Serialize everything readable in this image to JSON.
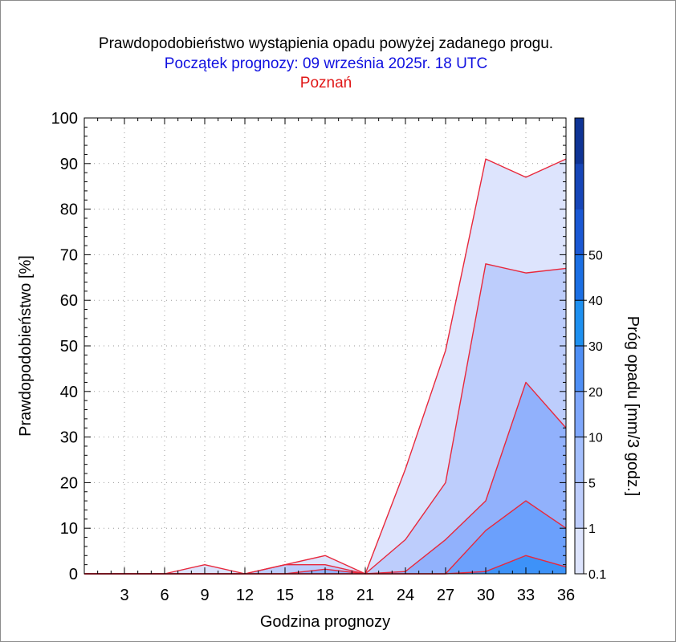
{
  "title": "Prawdopodobieństwo wystąpienia opadu powyżej zadanego progu.",
  "subtitle": "Początek prognozy: 09 września 2025r. 18 UTC",
  "location": "Poznań",
  "colors": {
    "title": "#000000",
    "subtitle": "#1010e0",
    "location": "#e01818",
    "line": "#e8283c",
    "fills": [
      "#dde4fd",
      "#bdcdfc",
      "#91b1fc",
      "#6ba0fc",
      "#3d92f8",
      "#1782f0"
    ],
    "colorbar": [
      "#dde4fd",
      "#bdcdfc",
      "#a4bffd",
      "#7fa7fb",
      "#4f8ff5",
      "#1e90f0",
      "#1b6fe4",
      "#1a58d4",
      "#1646b8",
      "#0f3495"
    ]
  },
  "chart_data": {
    "type": "area",
    "title": "Prawdopodobieństwo wystąpienia opadu powyżej zadanego progu.",
    "subtitle": "Początek prognozy: 09 września 2025r. 18 UTC",
    "xlabel": "Godzina prognozy",
    "ylabel": "Prawdopodobieństwo [%]",
    "xlim": [
      0,
      36
    ],
    "ylim": [
      0,
      100
    ],
    "x_ticks": [
      3,
      6,
      9,
      12,
      15,
      18,
      21,
      24,
      27,
      30,
      33,
      36
    ],
    "y_ticks": [
      0,
      10,
      20,
      30,
      40,
      50,
      60,
      70,
      80,
      90,
      100
    ],
    "grid": true,
    "x": [
      0,
      3,
      6,
      9,
      12,
      15,
      18,
      21,
      24,
      27,
      30,
      33,
      36
    ],
    "series": [
      {
        "threshold": 0.1,
        "values": [
          0,
          0,
          0,
          2,
          0,
          2,
          4,
          0,
          23,
          49,
          91,
          87,
          91
        ]
      },
      {
        "threshold": 1,
        "values": [
          0,
          0,
          0,
          0,
          0,
          2,
          2,
          0,
          7.5,
          20,
          68,
          66,
          67
        ]
      },
      {
        "threshold": 5,
        "values": [
          0,
          0,
          0,
          0,
          0,
          0,
          1,
          0,
          0.5,
          7.5,
          16,
          42,
          32
        ]
      },
      {
        "threshold": 10,
        "values": [
          0,
          0,
          0,
          0,
          0,
          0,
          0,
          0,
          0,
          0,
          9.5,
          16,
          10
        ]
      },
      {
        "threshold": 20,
        "values": [
          0,
          0,
          0,
          0,
          0,
          0,
          0,
          0,
          0,
          0,
          0.5,
          4,
          1.5
        ]
      }
    ],
    "colorbar": {
      "label": "Próg opadu [mm/3 godz.]",
      "tick_labels": [
        "0.1",
        "1",
        "5",
        "10",
        "20",
        "30",
        "40",
        "50"
      ]
    }
  }
}
